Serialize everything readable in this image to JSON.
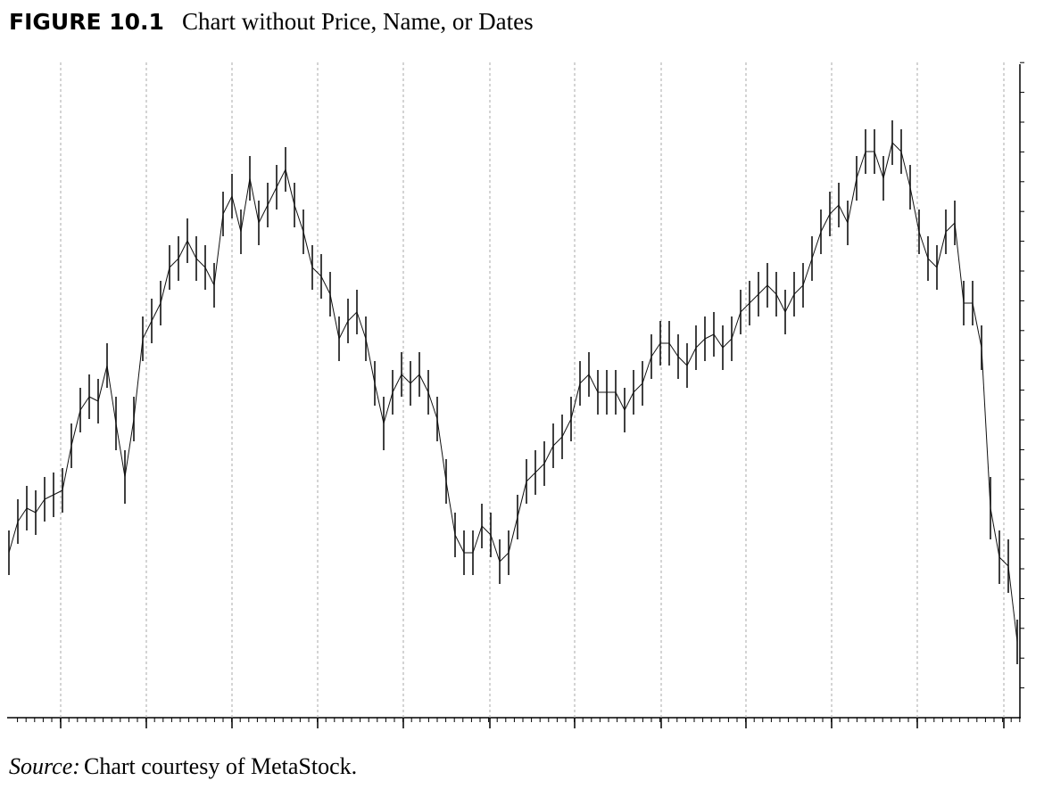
{
  "chart_data": {
    "type": "high-low",
    "figure_label": "FIGURE 10.1",
    "title": "Chart without Price, Name, or Dates",
    "source_label": "Source:",
    "source_text": "Chart courtesy of MetaStock.",
    "color": "#111111",
    "grid": true,
    "xlim": [
      0,
      113.3
    ],
    "ylim": [
      0,
      147
    ],
    "xticks": [
      5.8,
      15.4,
      25,
      34.6,
      44.2,
      53.9,
      63.4,
      73.1,
      82.6,
      92.2,
      101.8,
      111.5
    ],
    "x": [
      0,
      1,
      2,
      3,
      4,
      5,
      6,
      7,
      8,
      9,
      10,
      11,
      12,
      13,
      14,
      15,
      16,
      17,
      18,
      19,
      20,
      21,
      22,
      23,
      24,
      25,
      26,
      27,
      28,
      29,
      30,
      31,
      32,
      33,
      34,
      35,
      36,
      37,
      38,
      39,
      40,
      41,
      42,
      43,
      44,
      45,
      46,
      47,
      48,
      49,
      50,
      51,
      52,
      53,
      54,
      55,
      56,
      57,
      58,
      59,
      60,
      61,
      62,
      63,
      64,
      65,
      66,
      67,
      68,
      69,
      70,
      71,
      72,
      73,
      74,
      75,
      76,
      77,
      78,
      79,
      80,
      81,
      82,
      83,
      84,
      85,
      86,
      87,
      88,
      89,
      90,
      91,
      92,
      93,
      94,
      95,
      96,
      97,
      98,
      99,
      100,
      101,
      102,
      103,
      104,
      105,
      106,
      107,
      108,
      109,
      110,
      111,
      112,
      113
    ],
    "high": [
      42,
      49,
      52,
      51,
      54,
      55,
      56,
      66,
      74,
      77,
      76,
      84,
      72,
      60,
      72,
      90,
      94,
      98,
      106,
      108,
      112,
      108,
      106,
      102,
      118,
      122,
      114,
      126,
      116,
      120,
      124,
      128,
      120,
      114,
      106,
      104,
      100,
      90,
      94,
      96,
      90,
      80,
      72,
      78,
      82,
      80,
      82,
      78,
      72,
      58,
      46,
      42,
      42,
      48,
      46,
      40,
      42,
      50,
      58,
      60,
      62,
      66,
      68,
      72,
      80,
      82,
      78,
      78,
      78,
      74,
      78,
      80,
      86,
      89,
      89,
      86,
      84,
      88,
      90,
      91,
      88,
      90,
      96,
      98,
      100,
      102,
      100,
      96,
      100,
      102,
      108,
      114,
      118,
      120,
      116,
      126,
      132,
      132,
      126,
      134,
      132,
      124,
      114,
      108,
      106,
      114,
      116,
      98,
      98,
      88,
      54,
      42,
      40,
      22
    ],
    "low": [
      32,
      39,
      42,
      41,
      44,
      45,
      46,
      56,
      64,
      67,
      66,
      74,
      60,
      48,
      62,
      80,
      84,
      88,
      96,
      98,
      102,
      98,
      96,
      92,
      108,
      112,
      104,
      116,
      106,
      110,
      114,
      118,
      110,
      104,
      96,
      94,
      90,
      80,
      84,
      86,
      80,
      70,
      60,
      68,
      72,
      70,
      72,
      68,
      62,
      48,
      36,
      32,
      32,
      38,
      36,
      30,
      32,
      40,
      48,
      50,
      52,
      56,
      58,
      62,
      70,
      72,
      68,
      68,
      68,
      64,
      68,
      70,
      76,
      79,
      79,
      76,
      74,
      78,
      80,
      81,
      78,
      80,
      86,
      88,
      90,
      92,
      90,
      86,
      90,
      92,
      98,
      104,
      108,
      110,
      106,
      116,
      122,
      122,
      116,
      124,
      122,
      114,
      104,
      98,
      96,
      104,
      106,
      88,
      88,
      78,
      40,
      30,
      28,
      12
    ]
  }
}
